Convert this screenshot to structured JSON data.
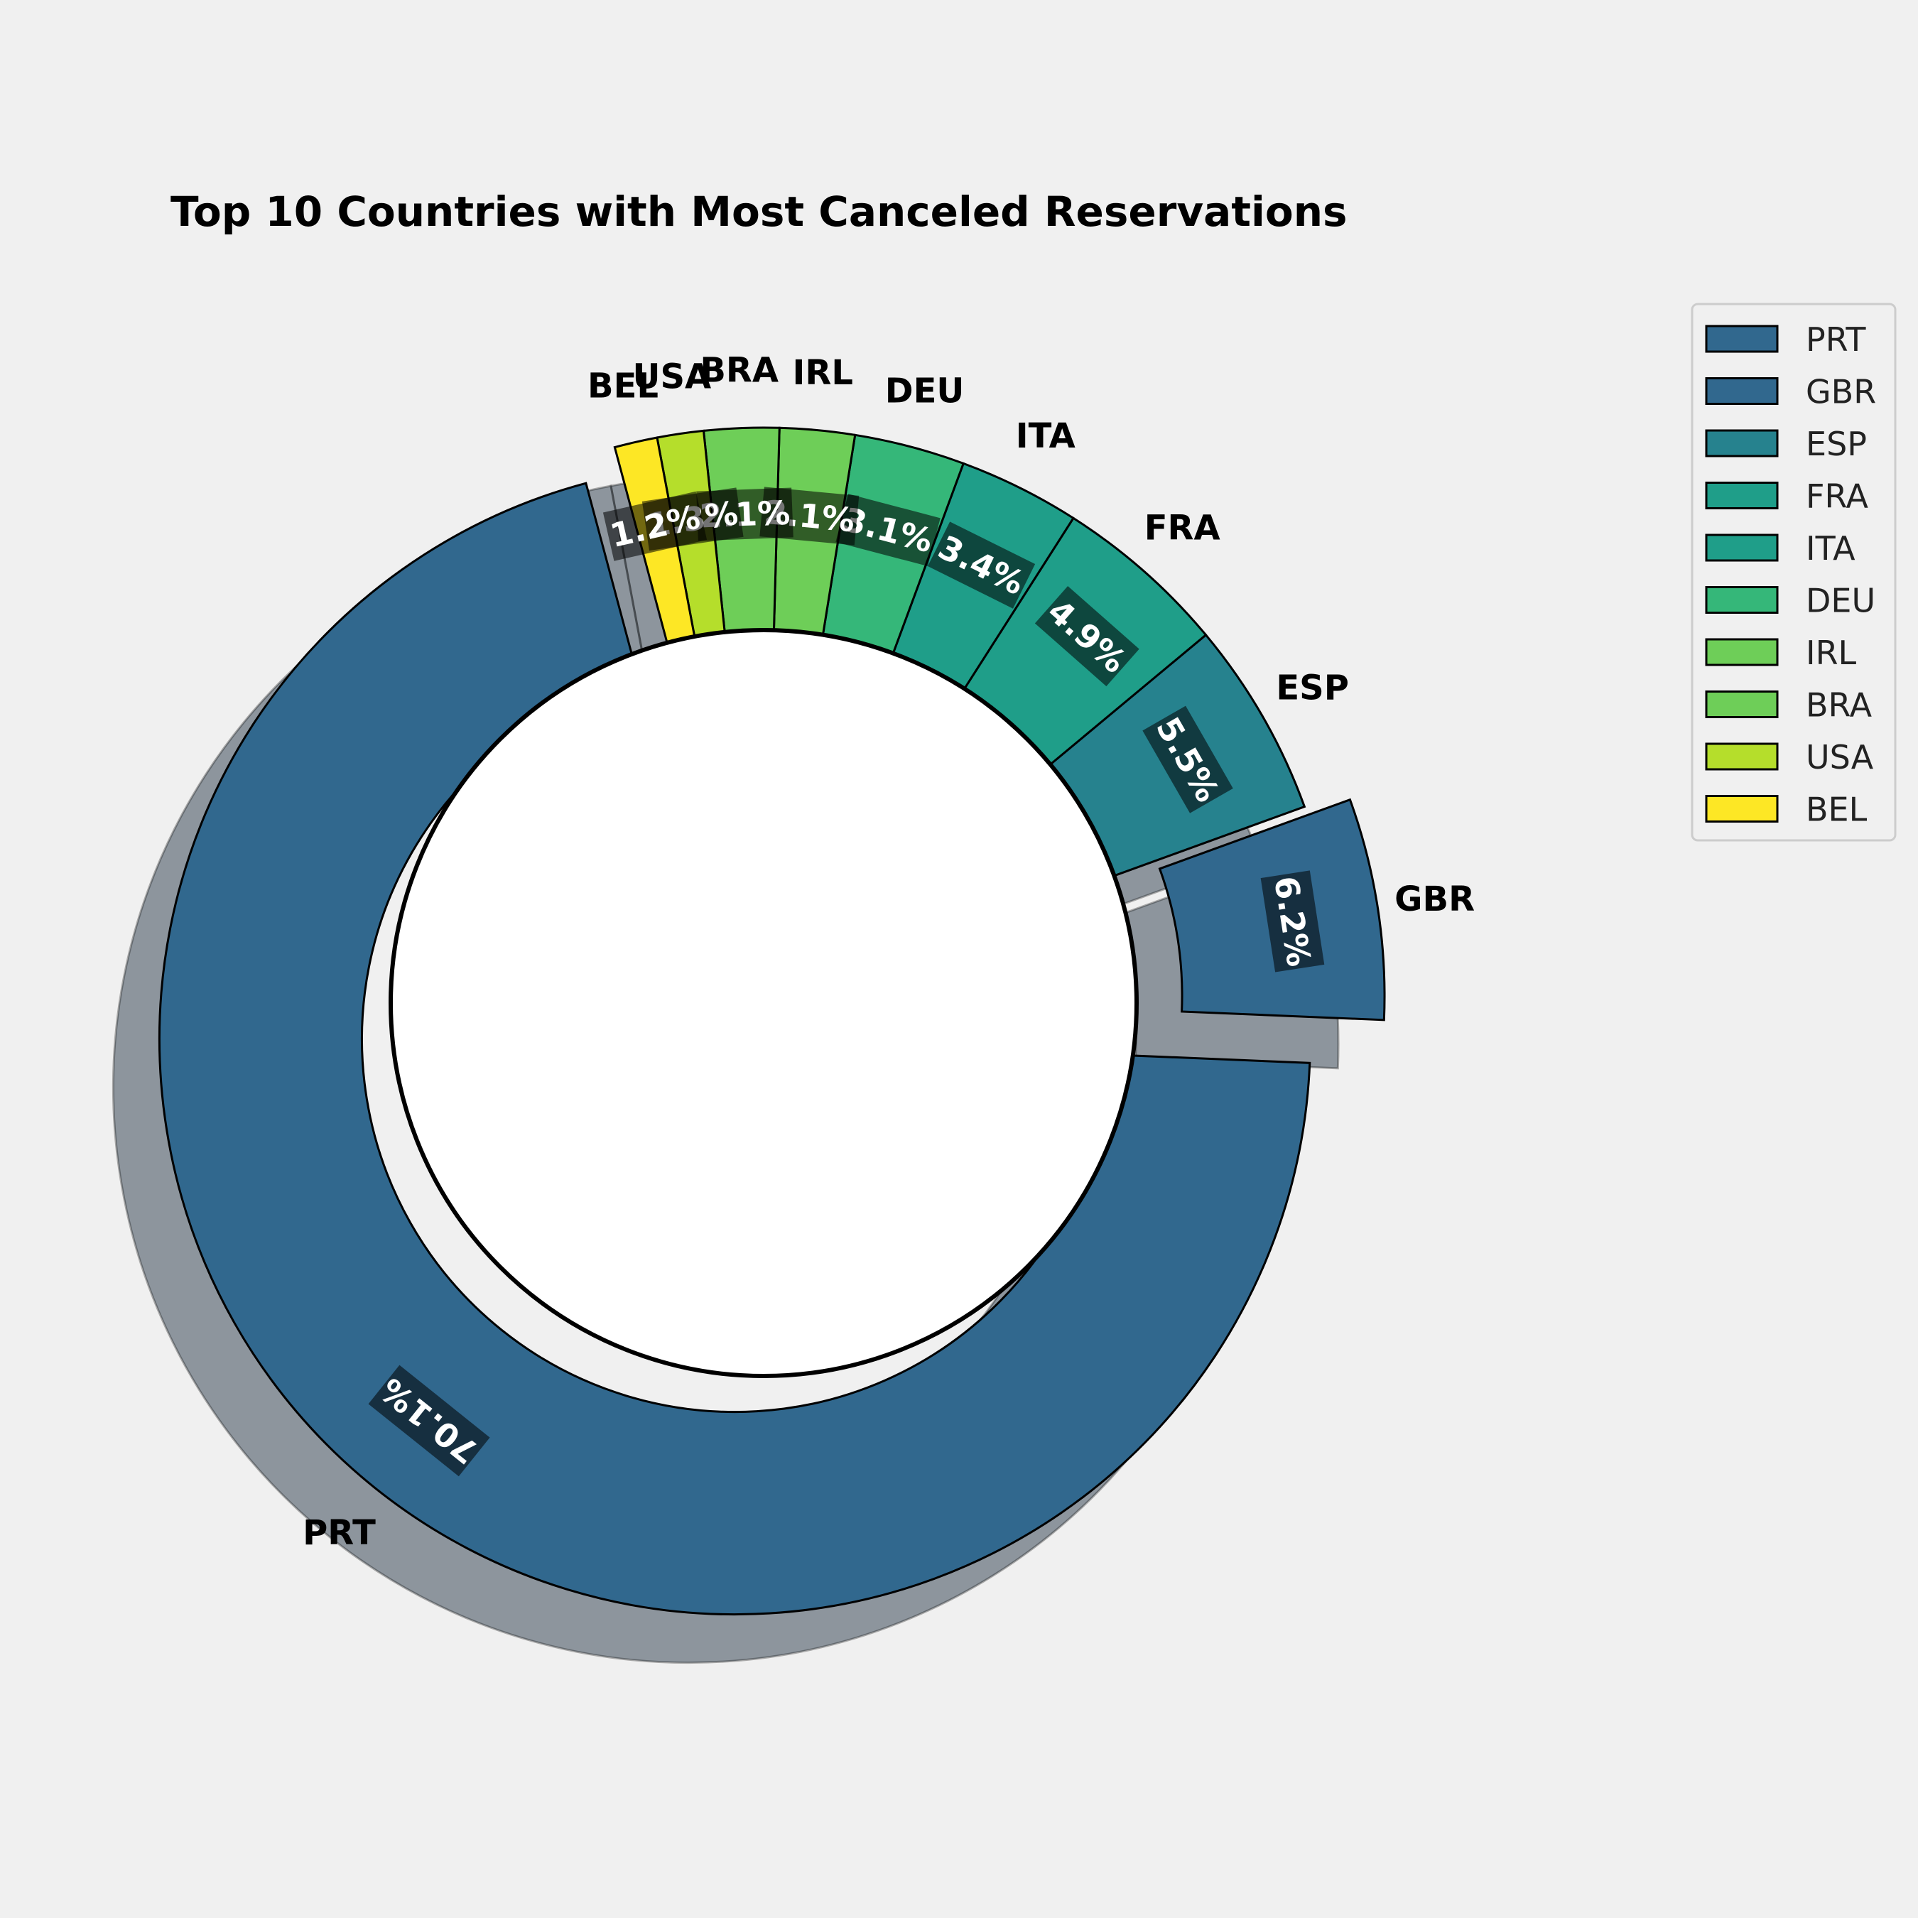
{
  "chart_data": {
    "type": "pie",
    "subtype": "donut",
    "title": "Top 10 Countries with Most Canceled Reservations",
    "categories": [
      "PRT",
      "GBR",
      "ESP",
      "FRA",
      "ITA",
      "DEU",
      "IRL",
      "BRA",
      "USA",
      "BEL"
    ],
    "values": [
      70.1,
      6.2,
      5.5,
      4.9,
      3.4,
      3.1,
      2.1,
      2.1,
      1.3,
      1.2
    ],
    "value_labels": [
      "70.1%",
      "6.2%",
      "5.5%",
      "4.9%",
      "3.4%",
      "3.1%",
      "2.1%",
      "2.1%",
      "1.3%",
      "1.2%"
    ],
    "colors": [
      "#31688e",
      "#31688e",
      "#26828e",
      "#1f9e89",
      "#1f9e89",
      "#35b779",
      "#6ece58",
      "#6ece58",
      "#b5de2b",
      "#fde725"
    ],
    "exploded": [
      "PRT",
      "GBR"
    ],
    "shadow": true,
    "legend": {
      "position": "upper-right-outside",
      "entries": [
        "PRT",
        "GBR",
        "ESP",
        "FRA",
        "ITA",
        "DEU",
        "IRL",
        "BRA",
        "USA",
        "BEL"
      ]
    }
  }
}
